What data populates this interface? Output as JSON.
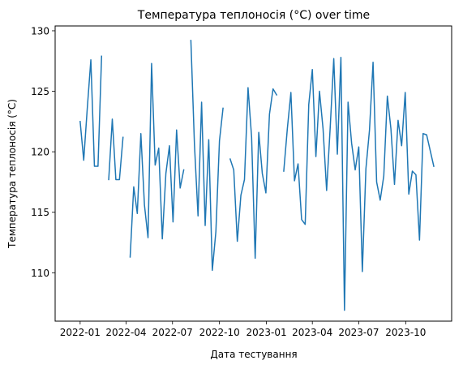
{
  "chart_data": {
    "type": "line",
    "title": "Температура теплоносія (°C) over time",
    "xlabel": "Дата тестування",
    "ylabel": "Температура теплоносія (°C)",
    "x_ticks": [
      "2022-01",
      "2022-04",
      "2022-07",
      "2022-10",
      "2023-01",
      "2023-04",
      "2023-07",
      "2023-10"
    ],
    "y_ticks": [
      110,
      115,
      120,
      125,
      130
    ],
    "xlim": [
      "2021-11-13",
      "2023-12-30"
    ],
    "ylim": [
      106.0,
      130.4
    ],
    "grid": false,
    "series": [
      {
        "color": "#1f77b4",
        "segments": [
          [
            [
              "2022-01-01",
              122.5
            ],
            [
              "2022-01-08",
              119.3
            ],
            [
              "2022-01-15",
              123.6
            ],
            [
              "2022-01-22",
              127.6
            ],
            [
              "2022-01-29",
              118.8
            ],
            [
              "2022-02-05",
              118.8
            ],
            [
              "2022-02-12",
              127.9
            ]
          ],
          [
            [
              "2022-02-26",
              117.7
            ],
            [
              "2022-03-05",
              122.7
            ],
            [
              "2022-03-12",
              117.7
            ],
            [
              "2022-03-19",
              117.7
            ],
            [
              "2022-03-26",
              121.2
            ]
          ],
          [
            [
              "2022-04-09",
              111.3
            ],
            [
              "2022-04-16",
              117.1
            ],
            [
              "2022-04-23",
              114.9
            ],
            [
              "2022-04-30",
              121.5
            ],
            [
              "2022-05-07",
              115.6
            ],
            [
              "2022-05-14",
              112.9
            ],
            [
              "2022-05-21",
              127.3
            ],
            [
              "2022-05-28",
              118.9
            ],
            [
              "2022-06-04",
              120.3
            ],
            [
              "2022-06-11",
              112.8
            ],
            [
              "2022-06-18",
              118.2
            ],
            [
              "2022-06-25",
              120.5
            ],
            [
              "2022-07-02",
              114.2
            ],
            [
              "2022-07-09",
              121.8
            ],
            [
              "2022-07-16",
              117.0
            ],
            [
              "2022-07-23",
              118.5
            ]
          ],
          [
            [
              "2022-08-06",
              129.2
            ],
            [
              "2022-08-13",
              120.6
            ],
            [
              "2022-08-20",
              114.7
            ],
            [
              "2022-08-27",
              124.1
            ],
            [
              "2022-09-03",
              113.9
            ],
            [
              "2022-09-10",
              121.0
            ],
            [
              "2022-09-17",
              110.2
            ],
            [
              "2022-09-24",
              113.4
            ],
            [
              "2022-10-01",
              120.9
            ],
            [
              "2022-10-08",
              123.6
            ]
          ],
          [
            [
              "2022-10-22",
              119.4
            ],
            [
              "2022-10-29",
              118.5
            ],
            [
              "2022-11-05",
              112.6
            ],
            [
              "2022-11-12",
              116.4
            ],
            [
              "2022-11-19",
              117.7
            ],
            [
              "2022-11-26",
              125.3
            ],
            [
              "2022-12-03",
              121.2
            ],
            [
              "2022-12-10",
              111.2
            ],
            [
              "2022-12-17",
              121.6
            ],
            [
              "2022-12-24",
              118.2
            ],
            [
              "2022-12-31",
              116.6
            ],
            [
              "2023-01-07",
              123.1
            ],
            [
              "2023-01-14",
              125.2
            ],
            [
              "2023-01-21",
              124.7
            ]
          ],
          [
            [
              "2023-02-04",
              118.4
            ],
            [
              "2023-02-11",
              121.9
            ],
            [
              "2023-02-18",
              124.9
            ],
            [
              "2023-02-25",
              117.6
            ],
            [
              "2023-03-04",
              119.0
            ],
            [
              "2023-03-11",
              114.4
            ],
            [
              "2023-03-18",
              114.0
            ],
            [
              "2023-03-25",
              123.9
            ],
            [
              "2023-04-01",
              126.8
            ],
            [
              "2023-04-08",
              119.6
            ],
            [
              "2023-04-15",
              125.0
            ],
            [
              "2023-04-22",
              121.9
            ],
            [
              "2023-04-29",
              116.8
            ],
            [
              "2023-05-06",
              122.0
            ],
            [
              "2023-05-13",
              127.7
            ],
            [
              "2023-05-20",
              119.8
            ],
            [
              "2023-05-27",
              127.8
            ],
            [
              "2023-06-03",
              106.9
            ],
            [
              "2023-06-10",
              124.1
            ],
            [
              "2023-06-17",
              120.7
            ],
            [
              "2023-06-24",
              118.5
            ],
            [
              "2023-07-01",
              120.4
            ],
            [
              "2023-07-08",
              110.1
            ],
            [
              "2023-07-15",
              118.6
            ],
            [
              "2023-07-22",
              121.8
            ],
            [
              "2023-07-29",
              127.4
            ],
            [
              "2023-08-05",
              117.5
            ],
            [
              "2023-08-12",
              116.0
            ],
            [
              "2023-08-19",
              118.0
            ],
            [
              "2023-08-26",
              124.6
            ],
            [
              "2023-09-02",
              121.9
            ],
            [
              "2023-09-09",
              117.3
            ],
            [
              "2023-09-16",
              122.6
            ],
            [
              "2023-09-23",
              120.5
            ],
            [
              "2023-09-30",
              124.9
            ],
            [
              "2023-10-07",
              116.5
            ],
            [
              "2023-10-14",
              118.4
            ],
            [
              "2023-10-21",
              118.1
            ],
            [
              "2023-10-28",
              112.7
            ],
            [
              "2023-11-04",
              121.5
            ],
            [
              "2023-11-11",
              121.4
            ],
            [
              "2023-11-18",
              120.1
            ],
            [
              "2023-11-25",
              118.8
            ]
          ]
        ]
      }
    ]
  }
}
